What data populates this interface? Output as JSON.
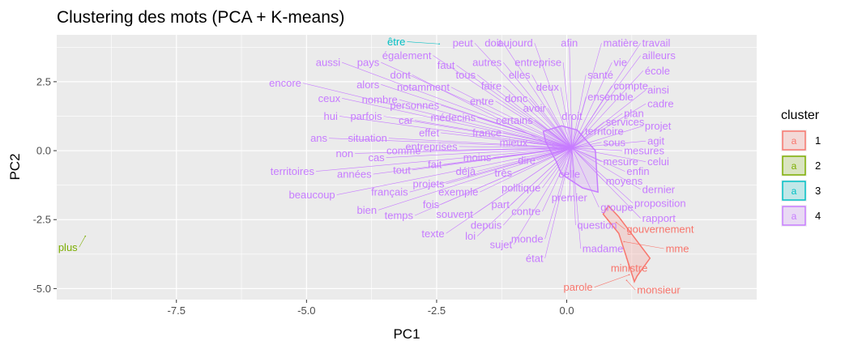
{
  "chart_data": {
    "type": "scatter",
    "title": "Clustering des mots (PCA + K-means)",
    "xlabel": "PC1",
    "ylabel": "PC2",
    "xlim": [
      -9.8,
      3.65
    ],
    "ylim": [
      -5.4,
      4.2
    ],
    "x_ticks": [
      -7.5,
      -5.0,
      -2.5,
      0.0
    ],
    "x_tick_labels": [
      "-7.5",
      "-5.0",
      "-2.5",
      "0.0"
    ],
    "y_ticks": [
      -5.0,
      -2.5,
      0.0,
      2.5
    ],
    "y_tick_labels": [
      "-5.0",
      "-2.5",
      "0.0",
      "2.5"
    ],
    "grid": true,
    "background": "#ebebeb",
    "legend": {
      "title": "cluster",
      "placement": "right",
      "key_glyph": "a",
      "entries": [
        {
          "label": "1",
          "color": "#F8766D"
        },
        {
          "label": "2",
          "color": "#7CAE00"
        },
        {
          "label": "3",
          "color": "#00BFC4"
        },
        {
          "label": "4",
          "color": "#C77CFF"
        }
      ]
    },
    "cluster_colors": {
      "1": "#F8766D",
      "2": "#7CAE00",
      "3": "#00BFC4",
      "4": "#C77CFF"
    },
    "hulls": {
      "1": [
        [
          0.8,
          -2.0
        ],
        [
          1.0,
          -2.4
        ],
        [
          1.6,
          -3.9
        ],
        [
          1.35,
          -4.55
        ],
        [
          1.3,
          -4.75
        ],
        [
          1.0,
          -3.0
        ],
        [
          0.7,
          -2.3
        ]
      ],
      "4": [
        [
          -0.45,
          0.7
        ],
        [
          -0.1,
          0.9
        ],
        [
          0.2,
          0.75
        ],
        [
          0.55,
          0.0
        ],
        [
          0.6,
          -1.5
        ],
        [
          0.3,
          -1.35
        ],
        [
          -0.1,
          -0.85
        ],
        [
          -0.2,
          -0.4
        ],
        [
          -0.4,
          0.3
        ]
      ]
    },
    "points": [
      {
        "word": "plus",
        "cluster": "2",
        "x": -9.25,
        "y": -3.1,
        "lx": -9.4,
        "ly": -3.5
      },
      {
        "word": "être",
        "cluster": "3",
        "x": -2.45,
        "y": 3.87,
        "lx": -3.1,
        "ly": 3.95
      },
      {
        "word": "monsieur",
        "cluster": "1",
        "x": 1.15,
        "y": -4.7,
        "lx": 1.35,
        "ly": -5.05
      },
      {
        "word": "parole",
        "cluster": "1",
        "x": 1.2,
        "y": -4.5,
        "lx": 0.5,
        "ly": -4.95
      },
      {
        "word": "ministre",
        "cluster": "1",
        "x": 1.15,
        "y": -3.9,
        "lx": 1.2,
        "ly": -4.25
      },
      {
        "word": "mme",
        "cluster": "1",
        "x": 1.1,
        "y": -3.3,
        "lx": 1.9,
        "ly": -3.55
      },
      {
        "word": "gouvernement",
        "cluster": "1",
        "x": 0.95,
        "y": -2.6,
        "lx": 1.15,
        "ly": -2.85
      },
      {
        "word": "peut",
        "cluster": "4",
        "x": 0.1,
        "y": 0.1,
        "lx": -1.8,
        "ly": 3.9
      },
      {
        "word": "doit",
        "cluster": "4",
        "x": 0.1,
        "y": 0.1,
        "lx": -1.25,
        "ly": 3.9
      },
      {
        "word": "aujourd",
        "cluster": "4",
        "x": 0.1,
        "y": 0.1,
        "lx": -0.65,
        "ly": 3.9
      },
      {
        "word": "afin",
        "cluster": "4",
        "x": 0.1,
        "y": 0.1,
        "lx": 0.05,
        "ly": 3.9
      },
      {
        "word": "matière",
        "cluster": "4",
        "x": 0.1,
        "y": 0.1,
        "lx": 0.7,
        "ly": 3.9
      },
      {
        "word": "travail",
        "cluster": "4",
        "x": 0.1,
        "y": 0.1,
        "lx": 1.45,
        "ly": 3.9
      },
      {
        "word": "également",
        "cluster": "4",
        "x": 0.1,
        "y": 0.1,
        "lx": -2.6,
        "ly": 3.45
      },
      {
        "word": "ailleurs",
        "cluster": "4",
        "x": 0.1,
        "y": 0.1,
        "lx": 1.45,
        "ly": 3.45
      },
      {
        "word": "aussi",
        "cluster": "4",
        "x": 0.1,
        "y": 0.1,
        "lx": -4.35,
        "ly": 3.2
      },
      {
        "word": "pays",
        "cluster": "4",
        "x": 0.1,
        "y": 0.1,
        "lx": -3.6,
        "ly": 3.2
      },
      {
        "word": "faut",
        "cluster": "4",
        "x": 0.1,
        "y": 0.1,
        "lx": -2.15,
        "ly": 3.1
      },
      {
        "word": "autres",
        "cluster": "4",
        "x": 0.1,
        "y": 0.1,
        "lx": -1.25,
        "ly": 3.2
      },
      {
        "word": "entreprise",
        "cluster": "4",
        "x": 0.1,
        "y": 0.1,
        "lx": -0.1,
        "ly": 3.2
      },
      {
        "word": "vie",
        "cluster": "4",
        "x": 0.1,
        "y": 0.1,
        "lx": 0.9,
        "ly": 3.2
      },
      {
        "word": "école",
        "cluster": "4",
        "x": 0.1,
        "y": 0.1,
        "lx": 1.5,
        "ly": 2.9
      },
      {
        "word": "tous",
        "cluster": "4",
        "x": 0.1,
        "y": 0.1,
        "lx": -1.75,
        "ly": 2.75
      },
      {
        "word": "dont",
        "cluster": "4",
        "x": -0.2,
        "y": 0.1,
        "lx": -3.0,
        "ly": 2.75
      },
      {
        "word": "elles",
        "cluster": "4",
        "x": 0.1,
        "y": 0.1,
        "lx": -0.7,
        "ly": 2.75
      },
      {
        "word": "santé",
        "cluster": "4",
        "x": 0.1,
        "y": 0.1,
        "lx": 0.4,
        "ly": 2.75
      },
      {
        "word": "encore",
        "cluster": "4",
        "x": 0.1,
        "y": 0.1,
        "lx": -5.1,
        "ly": 2.45
      },
      {
        "word": "alors",
        "cluster": "4",
        "x": 0.1,
        "y": 0.1,
        "lx": -3.6,
        "ly": 2.4
      },
      {
        "word": "notamment",
        "cluster": "4",
        "x": 0.1,
        "y": 0.1,
        "lx": -2.25,
        "ly": 2.3
      },
      {
        "word": "faire",
        "cluster": "4",
        "x": 0.1,
        "y": 0.1,
        "lx": -1.25,
        "ly": 2.35
      },
      {
        "word": "deux",
        "cluster": "4",
        "x": 0.1,
        "y": 0.1,
        "lx": -0.15,
        "ly": 2.3
      },
      {
        "word": "compte",
        "cluster": "4",
        "x": 0.1,
        "y": 0.1,
        "lx": 0.9,
        "ly": 2.35
      },
      {
        "word": "ainsi",
        "cluster": "4",
        "x": 0.1,
        "y": 0.1,
        "lx": 1.55,
        "ly": 2.2
      },
      {
        "word": "ceux",
        "cluster": "4",
        "x": 0.1,
        "y": 0.1,
        "lx": -4.35,
        "ly": 1.9
      },
      {
        "word": "nombre",
        "cluster": "4",
        "x": 0.1,
        "y": 0.1,
        "lx": -3.25,
        "ly": 1.85
      },
      {
        "word": "personnes",
        "cluster": "4",
        "x": 0.1,
        "y": 0.1,
        "lx": -2.45,
        "ly": 1.65
      },
      {
        "word": "entre",
        "cluster": "4",
        "x": 0.1,
        "y": 0.1,
        "lx": -1.4,
        "ly": 1.8
      },
      {
        "word": "donc",
        "cluster": "4",
        "x": 0.1,
        "y": 0.1,
        "lx": -0.75,
        "ly": 1.9
      },
      {
        "word": "ensemble",
        "cluster": "4",
        "x": 0.1,
        "y": 0.1,
        "lx": 0.4,
        "ly": 1.95
      },
      {
        "word": "cadre",
        "cluster": "4",
        "x": 0.1,
        "y": 0.1,
        "lx": 1.55,
        "ly": 1.7
      },
      {
        "word": "avoir",
        "cluster": "4",
        "x": 0.1,
        "y": 0.1,
        "lx": -0.4,
        "ly": 1.55
      },
      {
        "word": "hui",
        "cluster": "4",
        "x": 0.1,
        "y": 0.1,
        "lx": -4.4,
        "ly": 1.25
      },
      {
        "word": "parfois",
        "cluster": "4",
        "x": 0.1,
        "y": 0.1,
        "lx": -3.55,
        "ly": 1.25
      },
      {
        "word": "car",
        "cluster": "4",
        "x": 0.1,
        "y": 0.1,
        "lx": -2.95,
        "ly": 1.1
      },
      {
        "word": "médecins",
        "cluster": "4",
        "x": 0.1,
        "y": 0.1,
        "lx": -1.75,
        "ly": 1.2
      },
      {
        "word": "certains",
        "cluster": "4",
        "x": 0.1,
        "y": 0.1,
        "lx": -0.65,
        "ly": 1.1
      },
      {
        "word": "droit",
        "cluster": "4",
        "x": 0.1,
        "y": 0.1,
        "lx": 0.1,
        "ly": 1.25
      },
      {
        "word": "plan",
        "cluster": "4",
        "x": 0.1,
        "y": 0.1,
        "lx": 1.1,
        "ly": 1.35
      },
      {
        "word": "services",
        "cluster": "4",
        "x": 0.1,
        "y": 0.1,
        "lx": 0.75,
        "ly": 1.05
      },
      {
        "word": "projet",
        "cluster": "4",
        "x": 0.1,
        "y": 0.1,
        "lx": 1.5,
        "ly": 0.9
      },
      {
        "word": "effet",
        "cluster": "4",
        "x": 0.1,
        "y": 0.1,
        "lx": -2.45,
        "ly": 0.65
      },
      {
        "word": "france",
        "cluster": "4",
        "x": 0.1,
        "y": 0.1,
        "lx": -1.25,
        "ly": 0.65
      },
      {
        "word": "territoire",
        "cluster": "4",
        "x": 0.1,
        "y": 0.1,
        "lx": 0.35,
        "ly": 0.7
      },
      {
        "word": "ans",
        "cluster": "4",
        "x": 0.1,
        "y": 0.1,
        "lx": -4.6,
        "ly": 0.45
      },
      {
        "word": "situation",
        "cluster": "4",
        "x": 0.1,
        "y": 0.1,
        "lx": -3.45,
        "ly": 0.45
      },
      {
        "word": "mieux",
        "cluster": "4",
        "x": 0.1,
        "y": 0.1,
        "lx": -0.75,
        "ly": 0.3
      },
      {
        "word": "sous",
        "cluster": "4",
        "x": 0.1,
        "y": 0.1,
        "lx": 0.7,
        "ly": 0.3
      },
      {
        "word": "agit",
        "cluster": "4",
        "x": 0.1,
        "y": 0.1,
        "lx": 1.55,
        "ly": 0.35
      },
      {
        "word": "entreprises",
        "cluster": "4",
        "x": 0.1,
        "y": 0.1,
        "lx": -2.1,
        "ly": 0.15
      },
      {
        "word": "non",
        "cluster": "4",
        "x": 0.1,
        "y": 0.1,
        "lx": -4.1,
        "ly": -0.1
      },
      {
        "word": "comme",
        "cluster": "4",
        "x": 0.1,
        "y": 0.1,
        "lx": -2.8,
        "ly": 0.0
      },
      {
        "word": "mesures",
        "cluster": "4",
        "x": 0.1,
        "y": 0.1,
        "lx": 1.1,
        "ly": 0.0
      },
      {
        "word": "cas",
        "cluster": "4",
        "x": 0.1,
        "y": 0.1,
        "lx": -3.5,
        "ly": -0.25
      },
      {
        "word": "moins",
        "cluster": "4",
        "x": 0.1,
        "y": 0.1,
        "lx": -1.45,
        "ly": -0.25
      },
      {
        "word": "dire",
        "cluster": "4",
        "x": 0.1,
        "y": 0.1,
        "lx": -0.6,
        "ly": -0.35
      },
      {
        "word": "mesure",
        "cluster": "4",
        "x": 0.1,
        "y": 0.1,
        "lx": 0.7,
        "ly": -0.4
      },
      {
        "word": "celui",
        "cluster": "4",
        "x": 0.1,
        "y": 0.1,
        "lx": 1.55,
        "ly": -0.4
      },
      {
        "word": "fait",
        "cluster": "4",
        "x": 0.1,
        "y": 0.1,
        "lx": -2.4,
        "ly": -0.5
      },
      {
        "word": "territoires",
        "cluster": "4",
        "x": 0.1,
        "y": 0.1,
        "lx": -4.85,
        "ly": -0.75
      },
      {
        "word": "années",
        "cluster": "4",
        "x": 0.1,
        "y": 0.1,
        "lx": -3.75,
        "ly": -0.85
      },
      {
        "word": "tout",
        "cluster": "4",
        "x": 0.1,
        "y": 0.1,
        "lx": -3.0,
        "ly": -0.7
      },
      {
        "word": "déjà",
        "cluster": "4",
        "x": 0.1,
        "y": 0.1,
        "lx": -1.75,
        "ly": -0.75
      },
      {
        "word": "très",
        "cluster": "4",
        "x": 0.1,
        "y": 0.1,
        "lx": -1.05,
        "ly": -0.8
      },
      {
        "word": "celle",
        "cluster": "4",
        "x": 0.1,
        "y": 0.1,
        "lx": 0.05,
        "ly": -0.85
      },
      {
        "word": "enfin",
        "cluster": "4",
        "x": 0.1,
        "y": 0.1,
        "lx": 1.15,
        "ly": -0.75
      },
      {
        "word": "moyens",
        "cluster": "4",
        "x": 0.1,
        "y": 0.1,
        "lx": 0.75,
        "ly": -1.1
      },
      {
        "word": "projets",
        "cluster": "4",
        "x": 0.1,
        "y": 0.1,
        "lx": -2.35,
        "ly": -1.2
      },
      {
        "word": "français",
        "cluster": "4",
        "x": 0.1,
        "y": 0.1,
        "lx": -3.05,
        "ly": -1.5
      },
      {
        "word": "exemple",
        "cluster": "4",
        "x": 0.1,
        "y": 0.1,
        "lx": -1.7,
        "ly": -1.5
      },
      {
        "word": "politique",
        "cluster": "4",
        "x": 0.1,
        "y": 0.1,
        "lx": -0.5,
        "ly": -1.35
      },
      {
        "word": "dernier",
        "cluster": "4",
        "x": 0.1,
        "y": 0.1,
        "lx": 1.45,
        "ly": -1.4
      },
      {
        "word": "beaucoup",
        "cluster": "4",
        "x": 0.1,
        "y": 0.1,
        "lx": -4.45,
        "ly": -1.6
      },
      {
        "word": "premier",
        "cluster": "4",
        "x": 0.1,
        "y": 0.1,
        "lx": 0.05,
        "ly": -1.7
      },
      {
        "word": "proposition",
        "cluster": "4",
        "x": 0.1,
        "y": 0.1,
        "lx": 1.3,
        "ly": -1.9
      },
      {
        "word": "fois",
        "cluster": "4",
        "x": 0.1,
        "y": 0.1,
        "lx": -2.45,
        "ly": -1.95
      },
      {
        "word": "part",
        "cluster": "4",
        "x": 0.1,
        "y": 0.1,
        "lx": -1.1,
        "ly": -1.95
      },
      {
        "word": "groupe",
        "cluster": "4",
        "x": 0.1,
        "y": 0.1,
        "lx": 0.65,
        "ly": -2.05
      },
      {
        "word": "bien",
        "cluster": "4",
        "x": 0.1,
        "y": 0.1,
        "lx": -3.65,
        "ly": -2.15
      },
      {
        "word": "temps",
        "cluster": "4",
        "x": 0.1,
        "y": 0.1,
        "lx": -2.95,
        "ly": -2.35
      },
      {
        "word": "souvent",
        "cluster": "4",
        "x": 0.1,
        "y": 0.1,
        "lx": -1.8,
        "ly": -2.3
      },
      {
        "word": "contre",
        "cluster": "4",
        "x": 0.1,
        "y": 0.1,
        "lx": -0.5,
        "ly": -2.2
      },
      {
        "word": "rapport",
        "cluster": "4",
        "x": 0.1,
        "y": 0.1,
        "lx": 1.45,
        "ly": -2.45
      },
      {
        "word": "depuis",
        "cluster": "4",
        "x": 0.1,
        "y": 0.1,
        "lx": -1.25,
        "ly": -2.7
      },
      {
        "word": "question",
        "cluster": "4",
        "x": 0.1,
        "y": 0.1,
        "lx": 0.2,
        "ly": -2.7
      },
      {
        "word": "texte",
        "cluster": "4",
        "x": 0.1,
        "y": 0.1,
        "lx": -2.35,
        "ly": -3.0
      },
      {
        "word": "loi",
        "cluster": "4",
        "x": 0.1,
        "y": 0.1,
        "lx": -1.75,
        "ly": -3.1
      },
      {
        "word": "monde",
        "cluster": "4",
        "x": 0.1,
        "y": 0.1,
        "lx": -0.45,
        "ly": -3.2
      },
      {
        "word": "sujet",
        "cluster": "4",
        "x": 0.1,
        "y": 0.1,
        "lx": -1.05,
        "ly": -3.4
      },
      {
        "word": "madame",
        "cluster": "4",
        "x": 0.1,
        "y": 0.1,
        "lx": 0.3,
        "ly": -3.55
      },
      {
        "word": "état",
        "cluster": "4",
        "x": 0.1,
        "y": 0.1,
        "lx": -0.45,
        "ly": -3.9
      }
    ]
  }
}
